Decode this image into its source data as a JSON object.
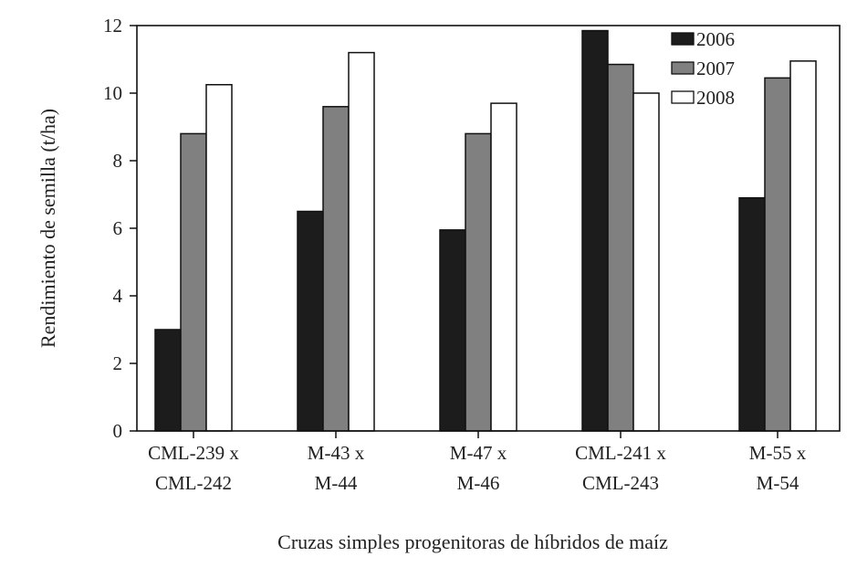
{
  "chart_data": {
    "type": "bar",
    "title": "",
    "xlabel": "Cruzas simples progenitoras de híbridos de maíz",
    "ylabel": "Rendimiento de semilla (t/ha)",
    "ylim": [
      0,
      12
    ],
    "yticks": [
      "0",
      "2",
      "4",
      "6",
      "8",
      "10",
      "12"
    ],
    "grid": false,
    "legend_position": "top-right",
    "categories": [
      {
        "line1": "CML-239 x",
        "line2": "CML-242"
      },
      {
        "line1": "M-43 x",
        "line2": "M-44"
      },
      {
        "line1": "M-47 x",
        "line2": "M-46"
      },
      {
        "line1": "CML-241 x",
        "line2": "CML-243"
      },
      {
        "line1": "M-55 x",
        "line2": "M-54"
      }
    ],
    "series": [
      {
        "name": "2006",
        "color": "#1c1c1c",
        "values": [
          3.0,
          6.5,
          5.95,
          11.85,
          6.9
        ]
      },
      {
        "name": "2007",
        "color": "#808080",
        "values": [
          8.8,
          9.6,
          8.8,
          10.85,
          10.45
        ]
      },
      {
        "name": "2008",
        "color": "#ffffff",
        "values": [
          10.25,
          11.2,
          9.7,
          10.0,
          10.95
        ]
      }
    ]
  }
}
